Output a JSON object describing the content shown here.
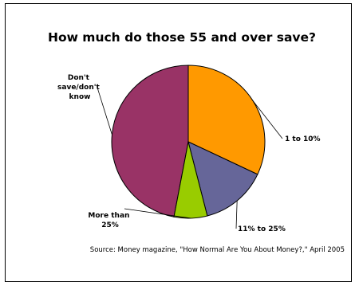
{
  "chart_data": {
    "type": "pie",
    "title": "How much do those 55 and over save?",
    "slices": [
      {
        "label": "Don't save/don't know",
        "value": 47,
        "color": "#993366"
      },
      {
        "label": "1 to 10%",
        "value": 32,
        "color": "#ff9900"
      },
      {
        "label": "11% to 25%",
        "value": 14,
        "color": "#666699"
      },
      {
        "label": "More than 25%",
        "value": 7,
        "color": "#99cc00"
      }
    ],
    "labels": [
      {
        "lines": [
          "Don't",
          "save/don't",
          "know"
        ]
      },
      {
        "lines": [
          "1 to 10%"
        ]
      },
      {
        "lines": [
          "11% to 25%"
        ]
      },
      {
        "lines": [
          "More than",
          "25%"
        ]
      }
    ],
    "source": "Source:  Money magazine, \"How Normal Are You About Money?,\" April 2005"
  }
}
